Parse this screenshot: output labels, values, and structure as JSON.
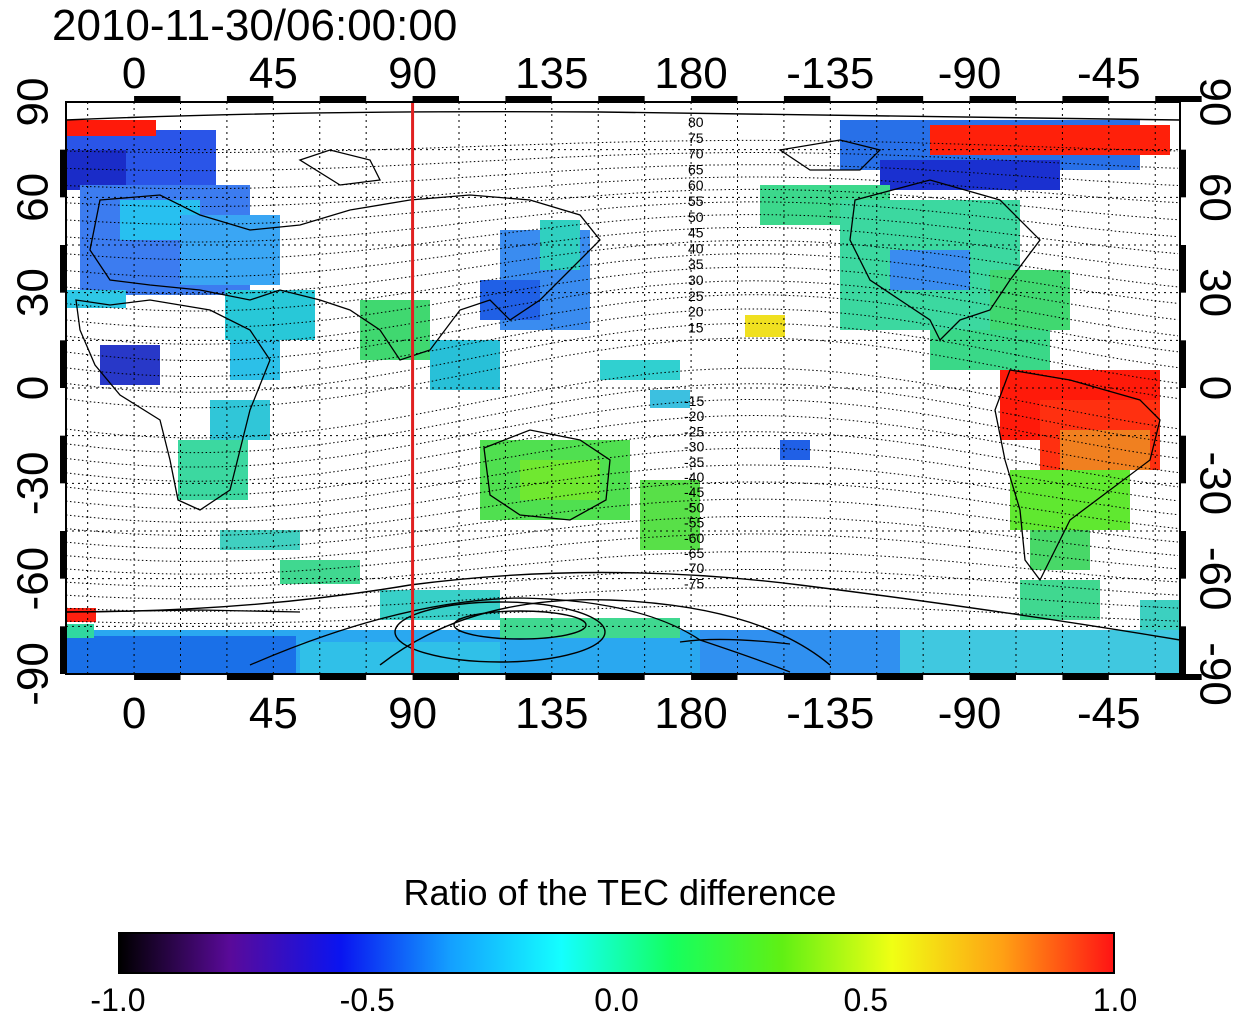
{
  "timestamp": "2010-11-30/06:00:00",
  "top_lon_ticks": [
    "0",
    "45",
    "90",
    "135",
    "180",
    "-135",
    "-90",
    "-45"
  ],
  "bottom_lon_ticks": [
    "0",
    "45",
    "90",
    "135",
    "180",
    "-135",
    "-90",
    "-45"
  ],
  "left_lat_ticks": [
    "90",
    "60",
    "30",
    "0",
    "-30",
    "-60",
    "-90"
  ],
  "right_lat_ticks": [
    "90",
    "60",
    "30",
    "0",
    "-30",
    "-60",
    "-90"
  ],
  "contour_labels_north": [
    "80",
    "75",
    "70",
    "65",
    "60",
    "55",
    "50",
    "45",
    "40",
    "35",
    "30",
    "25",
    "20",
    "15"
  ],
  "contour_labels_south": [
    "-15",
    "-20",
    "-25",
    "-30",
    "-35",
    "-40",
    "-45",
    "-50",
    "-55",
    "-60",
    "-65",
    "-70",
    "-75"
  ],
  "marker_longitude": 90,
  "colorbar": {
    "title": "Ratio of the TEC difference",
    "labels": [
      "-1.0",
      "-0.5",
      "0.0",
      "0.5",
      "1.0"
    ],
    "range": [
      -1.0,
      1.0
    ]
  },
  "colors": {
    "marker_line": "#e02020",
    "colormap": [
      "#000000",
      "#5a0a9a",
      "#0a14f0",
      "#14a0ff",
      "#14ffff",
      "#14ff60",
      "#60f014",
      "#f0ff14",
      "#ffa014",
      "#ff1414"
    ]
  }
}
